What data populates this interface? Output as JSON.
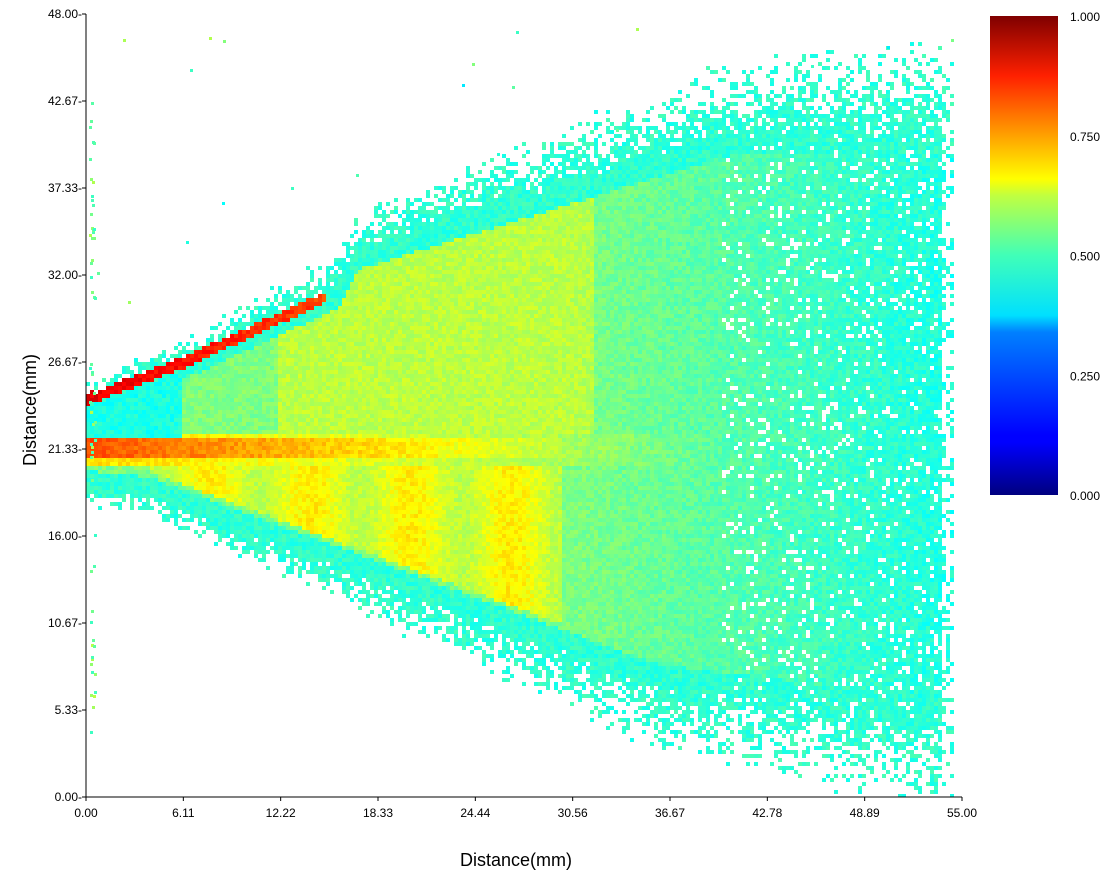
{
  "chart_data": {
    "type": "heatmap",
    "xlabel": "Distance(mm)",
    "ylabel": "Distance(mm)",
    "xlim": [
      0,
      55
    ],
    "ylim": [
      0,
      48
    ],
    "x_ticks": [
      "0.00",
      "6.11",
      "12.22",
      "18.33",
      "24.44",
      "30.56",
      "36.67",
      "42.78",
      "48.89",
      "55.00"
    ],
    "y_ticks": [
      "0.00",
      "5.33",
      "10.67",
      "16.00",
      "21.33",
      "26.67",
      "32.00",
      "37.33",
      "42.67",
      "48.00"
    ],
    "colorbar": {
      "range": [
        0,
        1
      ],
      "ticks": [
        "1.000",
        "0.750",
        "0.500",
        "0.250",
        "0.000"
      ],
      "colormap": "jet"
    },
    "features": {
      "nozzle_y": 21.33,
      "core_jet_value": 0.8,
      "cloud_value": 0.5,
      "edge_value": 0.42,
      "upper_hot_edge_value": 0.9
    },
    "grid": false
  }
}
